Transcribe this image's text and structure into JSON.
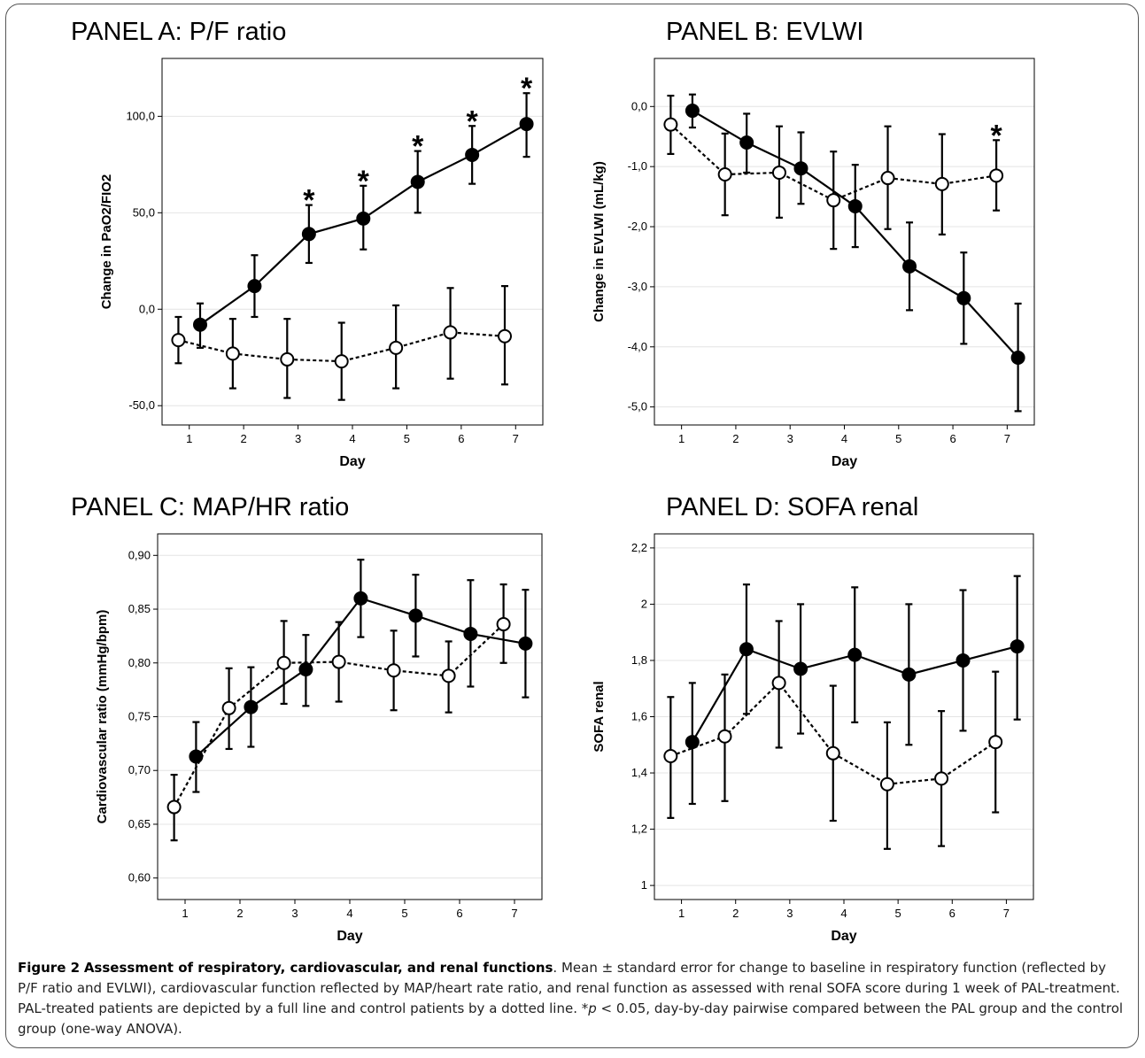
{
  "figure": {
    "caption_label": "Figure 2",
    "caption_title": "Assessment of respiratory, cardiovascular, and renal functions",
    "caption_part1": ". Mean ± standard error for change to baseline in respiratory function (reflected by P/F ratio and EVLWI), cardiovascular function reflected by MAP/heart rate ratio, and renal function as assessed with renal SOFA score during 1 week of PAL-treatment. PAL-treated patients are depicted by a full line and control patients by a dotted line. *",
    "caption_p": "p",
    "caption_part2": " < 0.05, day-by-day pairwise compared between the PAL group and the control group (one-way ANOVA)."
  },
  "chart_data": [
    {
      "type": "line",
      "title": "PANEL A: P/F ratio",
      "xlabel": "Day",
      "ylabel": "Change in PaO2/FIO2",
      "x": [
        1,
        2,
        3,
        4,
        5,
        6,
        7
      ],
      "xlim": [
        0.5,
        7.5
      ],
      "ylim": [
        -60,
        130
      ],
      "yticks": [
        -50,
        0,
        50,
        100
      ],
      "ytick_labels": [
        "-50,0",
        "0,0",
        "50,0",
        "100,0"
      ],
      "grid": "horizontal",
      "series": [
        {
          "style": "solid",
          "marker": "filled",
          "values": [
            -8,
            12,
            39,
            47,
            66,
            80,
            96
          ],
          "err_low": [
            -20,
            -4,
            24,
            31,
            50,
            65,
            79
          ],
          "err_high": [
            3,
            28,
            54,
            64,
            82,
            95,
            112
          ]
        },
        {
          "style": "dotted",
          "marker": "open",
          "values": [
            -16,
            -23,
            -26,
            -27,
            -20,
            -12,
            -14
          ],
          "err_low": [
            -28,
            -41,
            -46,
            -47,
            -41,
            -36,
            -39
          ],
          "err_high": [
            -4,
            -5,
            -5,
            -7,
            2,
            11,
            12
          ]
        }
      ],
      "significance_marker": "*",
      "significant_days": [
        3,
        4,
        5,
        6,
        7
      ]
    },
    {
      "type": "line",
      "title": "PANEL B: EVLWI",
      "xlabel": "Day",
      "ylabel": "Change in EVLWI (mL/kg)",
      "x": [
        1,
        2,
        3,
        4,
        5,
        6,
        7
      ],
      "xlim": [
        0.5,
        7.5
      ],
      "ylim": [
        -5.3,
        0.8
      ],
      "yticks": [
        0,
        -1,
        -2,
        -3,
        -4,
        -5
      ],
      "ytick_labels": [
        "0,0",
        "-1,0",
        "-2,0",
        "-3,0",
        "-4,0",
        "-5,0"
      ],
      "grid": "horizontal",
      "series": [
        {
          "style": "solid",
          "marker": "filled",
          "values": [
            -0.07,
            -0.6,
            -1.03,
            -1.66,
            -2.66,
            -3.19,
            -4.18
          ],
          "err_low": [
            -0.35,
            -1.1,
            -1.62,
            -2.34,
            -3.39,
            -3.95,
            -5.07
          ],
          "err_high": [
            0.2,
            -0.12,
            -0.43,
            -0.97,
            -1.93,
            -2.43,
            -3.28
          ]
        },
        {
          "style": "dotted",
          "marker": "open",
          "values": [
            -0.3,
            -1.13,
            -1.1,
            -1.56,
            -1.19,
            -1.29,
            -1.15
          ],
          "err_low": [
            -0.79,
            -1.81,
            -1.85,
            -2.37,
            -2.04,
            -2.13,
            -1.73
          ],
          "err_high": [
            0.18,
            -0.45,
            -0.33,
            -0.75,
            -0.33,
            -0.46,
            -0.56
          ]
        }
      ],
      "significance_marker": "*",
      "significant_days": [
        7
      ]
    },
    {
      "type": "line",
      "title": "PANEL C: MAP/HR ratio",
      "xlabel": "Day",
      "ylabel": "Cardiovascular ratio (mmHg/bpm)",
      "x": [
        1,
        2,
        3,
        4,
        5,
        6,
        7
      ],
      "xlim": [
        0.5,
        7.5
      ],
      "ylim": [
        0.58,
        0.92
      ],
      "yticks": [
        0.6,
        0.65,
        0.7,
        0.75,
        0.8,
        0.85,
        0.9
      ],
      "ytick_labels": [
        "0,60",
        "0,65",
        "0,70",
        "0,75",
        "0,80",
        "0,85",
        "0,90"
      ],
      "grid": "horizontal",
      "series": [
        {
          "style": "solid",
          "marker": "filled",
          "values": [
            0.713,
            0.759,
            0.794,
            0.86,
            0.844,
            0.827,
            0.818
          ],
          "err_low": [
            0.68,
            0.722,
            0.76,
            0.824,
            0.806,
            0.778,
            0.768
          ],
          "err_high": [
            0.745,
            0.796,
            0.826,
            0.896,
            0.882,
            0.877,
            0.868
          ]
        },
        {
          "style": "dotted",
          "marker": "open",
          "values": [
            0.666,
            0.758,
            0.8,
            0.801,
            0.793,
            0.788,
            0.836
          ],
          "err_low": [
            0.635,
            0.72,
            0.762,
            0.764,
            0.756,
            0.754,
            0.8
          ],
          "err_high": [
            0.696,
            0.795,
            0.839,
            0.838,
            0.83,
            0.82,
            0.873
          ]
        }
      ]
    },
    {
      "type": "line",
      "title": "PANEL D: SOFA renal",
      "xlabel": "Day",
      "ylabel": "SOFA renal",
      "x": [
        1,
        2,
        3,
        4,
        5,
        6,
        7
      ],
      "xlim": [
        0.5,
        7.5
      ],
      "ylim": [
        0.95,
        2.25
      ],
      "yticks": [
        1,
        1.2,
        1.4,
        1.6,
        1.8,
        2,
        2.2
      ],
      "ytick_labels": [
        "1",
        "1,2",
        "1,4",
        "1,6",
        "1,8",
        "2",
        "2,2"
      ],
      "grid": "horizontal",
      "series": [
        {
          "style": "solid",
          "marker": "filled",
          "values": [
            1.51,
            1.84,
            1.77,
            1.82,
            1.75,
            1.8,
            1.85
          ],
          "err_low": [
            1.29,
            1.61,
            1.54,
            1.58,
            1.5,
            1.55,
            1.59
          ],
          "err_high": [
            1.72,
            2.07,
            2.0,
            2.06,
            2.0,
            2.05,
            2.1
          ]
        },
        {
          "style": "dotted",
          "marker": "open",
          "values": [
            1.46,
            1.53,
            1.72,
            1.47,
            1.36,
            1.38,
            1.51
          ],
          "err_low": [
            1.24,
            1.3,
            1.49,
            1.23,
            1.13,
            1.14,
            1.26
          ],
          "err_high": [
            1.67,
            1.75,
            1.94,
            1.71,
            1.58,
            1.62,
            1.76
          ]
        }
      ]
    }
  ]
}
